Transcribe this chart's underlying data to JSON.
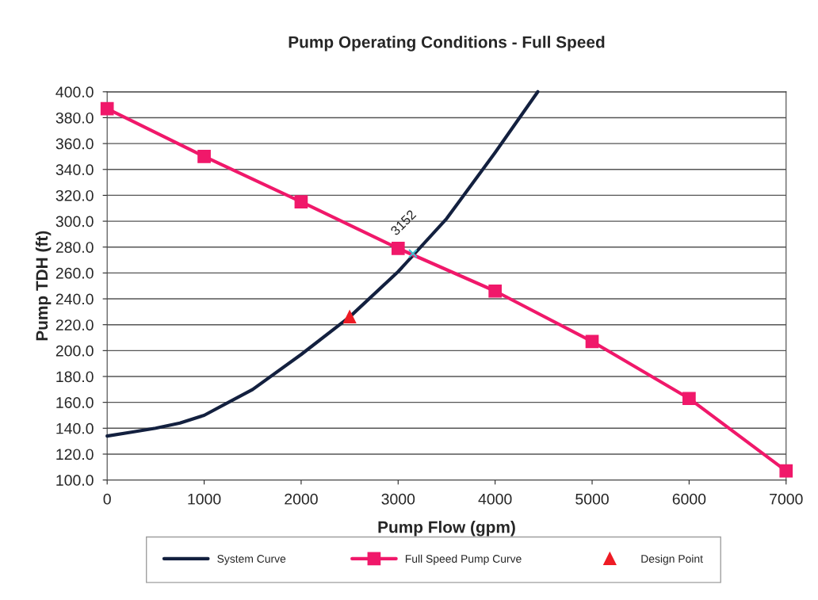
{
  "chart_data": {
    "type": "line",
    "title": "Pump Operating Conditions - Full Speed",
    "xlabel": "Pump Flow (gpm)",
    "ylabel": "Pump TDH (ft)",
    "xlim": [
      0,
      7000
    ],
    "xticks": [
      0,
      1000,
      2000,
      3000,
      4000,
      5000,
      6000,
      7000
    ],
    "ylim": [
      100,
      400
    ],
    "yticks": [
      {
        "value": 100,
        "label": "100.0"
      },
      {
        "value": 120,
        "label": "120.0"
      },
      {
        "value": 140,
        "label": "140.0"
      },
      {
        "value": 160,
        "label": "160.0"
      },
      {
        "value": 180,
        "label": "180.0"
      },
      {
        "value": 200,
        "label": "200.0"
      },
      {
        "value": 220,
        "label": "220.0"
      },
      {
        "value": 240,
        "label": "240.0"
      },
      {
        "value": 260,
        "label": "260.0"
      },
      {
        "value": 280,
        "label": "280.0"
      },
      {
        "value": 300,
        "label": "300.0"
      },
      {
        "value": 320,
        "label": "320.0"
      },
      {
        "value": 340,
        "label": "340.0"
      },
      {
        "value": 360,
        "label": "360.0"
      },
      {
        "value": 380,
        "label": "380.0"
      },
      {
        "value": 400,
        "label": "400.0"
      }
    ],
    "grid": "y",
    "legend": "bottom",
    "series": [
      {
        "name": "System Curve",
        "color": "#13203f",
        "marker": "none",
        "x": [
          0,
          250,
          500,
          750,
          1000,
          1500,
          2000,
          2500,
          3000,
          3500,
          4000,
          4440
        ],
        "values": [
          134,
          137,
          140,
          144,
          150,
          170,
          197,
          226,
          261,
          302,
          353,
          400
        ]
      },
      {
        "name": "Full Speed Pump Curve",
        "color": "#f0186a",
        "marker": "square",
        "x": [
          0,
          1000,
          2000,
          3000,
          4000,
          5000,
          6000,
          7000
        ],
        "values": [
          387,
          350,
          315,
          279,
          246,
          207,
          163,
          107
        ]
      },
      {
        "name": "Design Point",
        "type": "scatter",
        "color": "#ee1c25",
        "marker": "triangle",
        "x": [
          2500
        ],
        "values": [
          226
        ]
      },
      {
        "type": "scatter",
        "color": "#40c0d0",
        "marker": "cross",
        "x": [
          3152
        ],
        "values": [
          275
        ]
      }
    ],
    "annotations": [
      {
        "text": "3152",
        "x": 3152,
        "y": 275
      }
    ]
  }
}
